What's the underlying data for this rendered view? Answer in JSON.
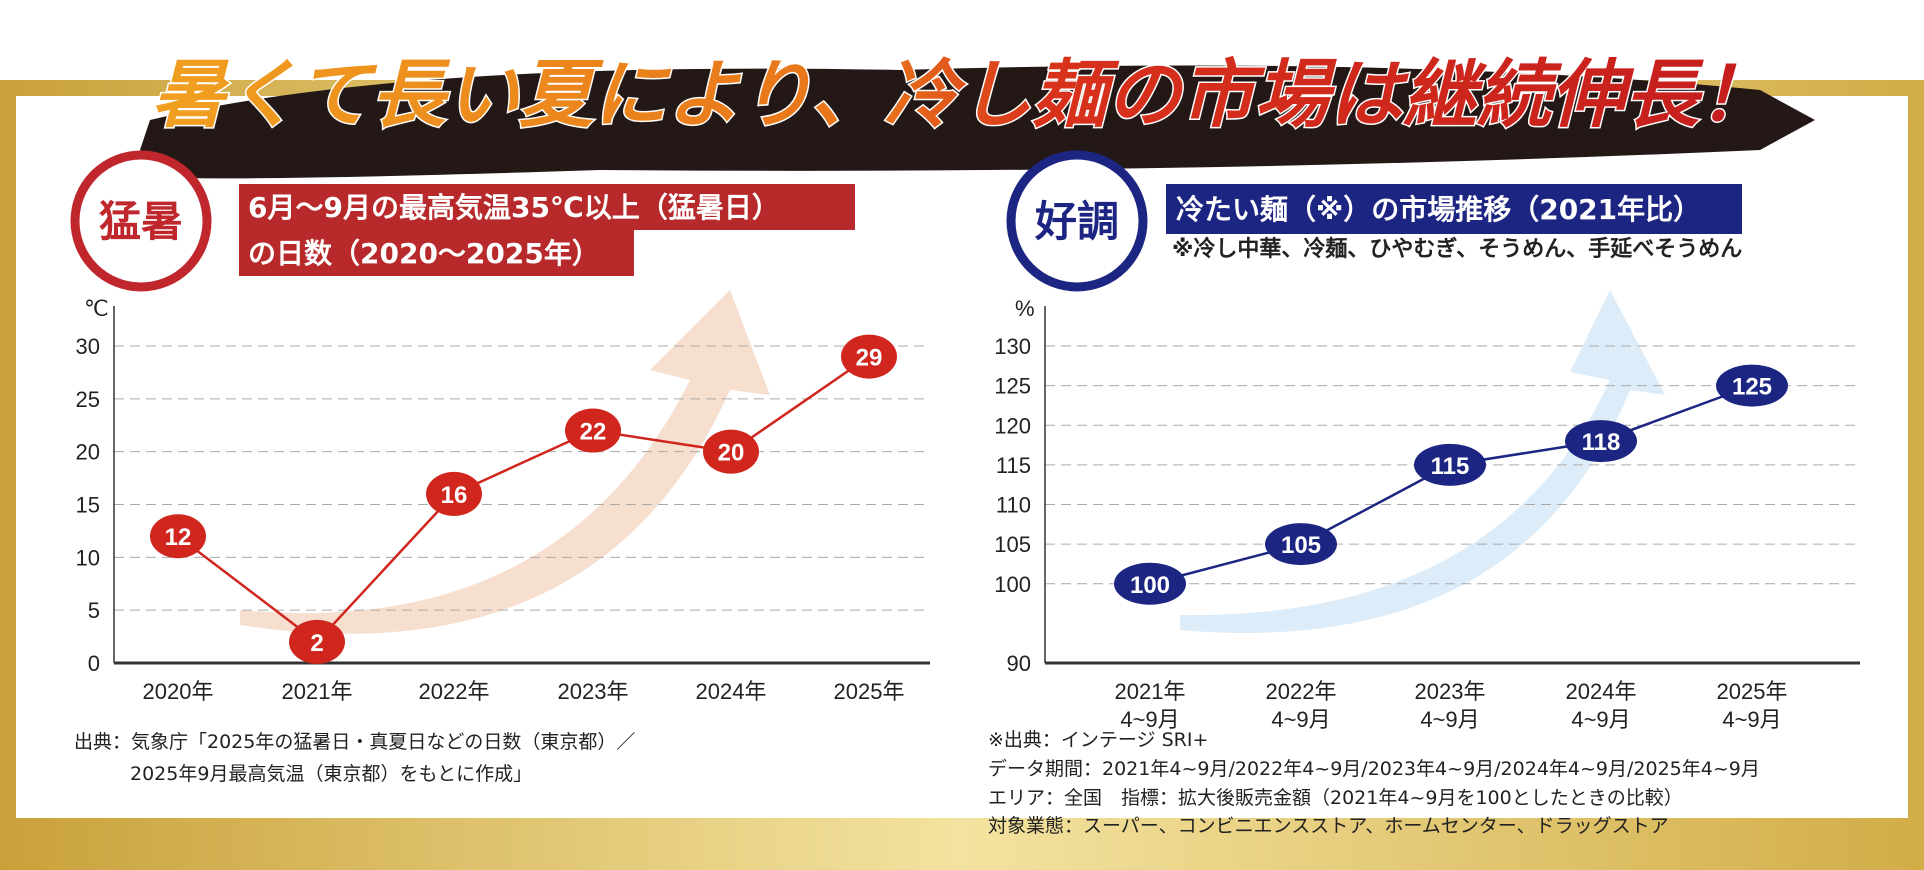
{
  "headline": "暑くて長い夏により、冷し麺の市場は継続伸長！",
  "colors": {
    "gold": "#d9b54a",
    "red": "#c0272d",
    "navy": "#1d2582",
    "red_line": "#d0261e",
    "navy_line": "#1d2582",
    "peach_arrow": "#f6dccb",
    "blue_arrow": "#d8eaf7"
  },
  "left_panel": {
    "badge": "猛暑",
    "title_line1": "6月〜9月の最高気温35℃以上（猛暑日）",
    "title_line2": "の日数（2020〜2025年）",
    "source_line1": "出典：気象庁「2025年の猛暑日・真夏日などの日数（東京都）／",
    "source_line2": "2025年9月最高気温（東京都）をもとに作成」"
  },
  "right_panel": {
    "badge": "好調",
    "title": "冷たい麺（※）の市場推移（2021年比）",
    "subtitle": "※冷し中華、冷麺、ひやむぎ、そうめん、手延べそうめん",
    "source_lines": [
      "※出典：インテージ SRI+",
      "データ期間：2021年4~9月/2022年4~9月/2023年4~9月/2024年4~9月/2025年4~9月",
      "エリア：全国　指標：拡大後販売金額（2021年4~9月を100としたときの比較）",
      "対象業態：スーパー、コンビニエンスストア、ホームセンター、ドラッグストア"
    ]
  },
  "chart_data": [
    {
      "type": "line",
      "ylabel": "℃",
      "categories": [
        "2020年",
        "2021年",
        "2022年",
        "2023年",
        "2024年",
        "2025年"
      ],
      "values": [
        12,
        2,
        16,
        22,
        20,
        29
      ],
      "data_labels": [
        "12",
        "2",
        "16",
        "22",
        "20",
        "29"
      ],
      "ylim": [
        0,
        30
      ],
      "yticks": [
        "0",
        "5",
        "10",
        "15",
        "20",
        "25",
        "30"
      ],
      "grid": true,
      "color": "#d0261e"
    },
    {
      "type": "line",
      "ylabel": "%",
      "categories": [
        [
          "2021年",
          "4~9月"
        ],
        [
          "2022年",
          "4~9月"
        ],
        [
          "2023年",
          "4~9月"
        ],
        [
          "2024年",
          "4~9月"
        ],
        [
          "2025年",
          "4~9月"
        ]
      ],
      "values": [
        100,
        105,
        115,
        118,
        125
      ],
      "data_labels": [
        "100",
        "105",
        "115",
        "118",
        "125"
      ],
      "ylim": [
        90,
        130
      ],
      "yticks": [
        "90",
        "100",
        "105",
        "110",
        "115",
        "120",
        "125",
        "130"
      ],
      "grid": true,
      "color": "#1d2582"
    }
  ]
}
